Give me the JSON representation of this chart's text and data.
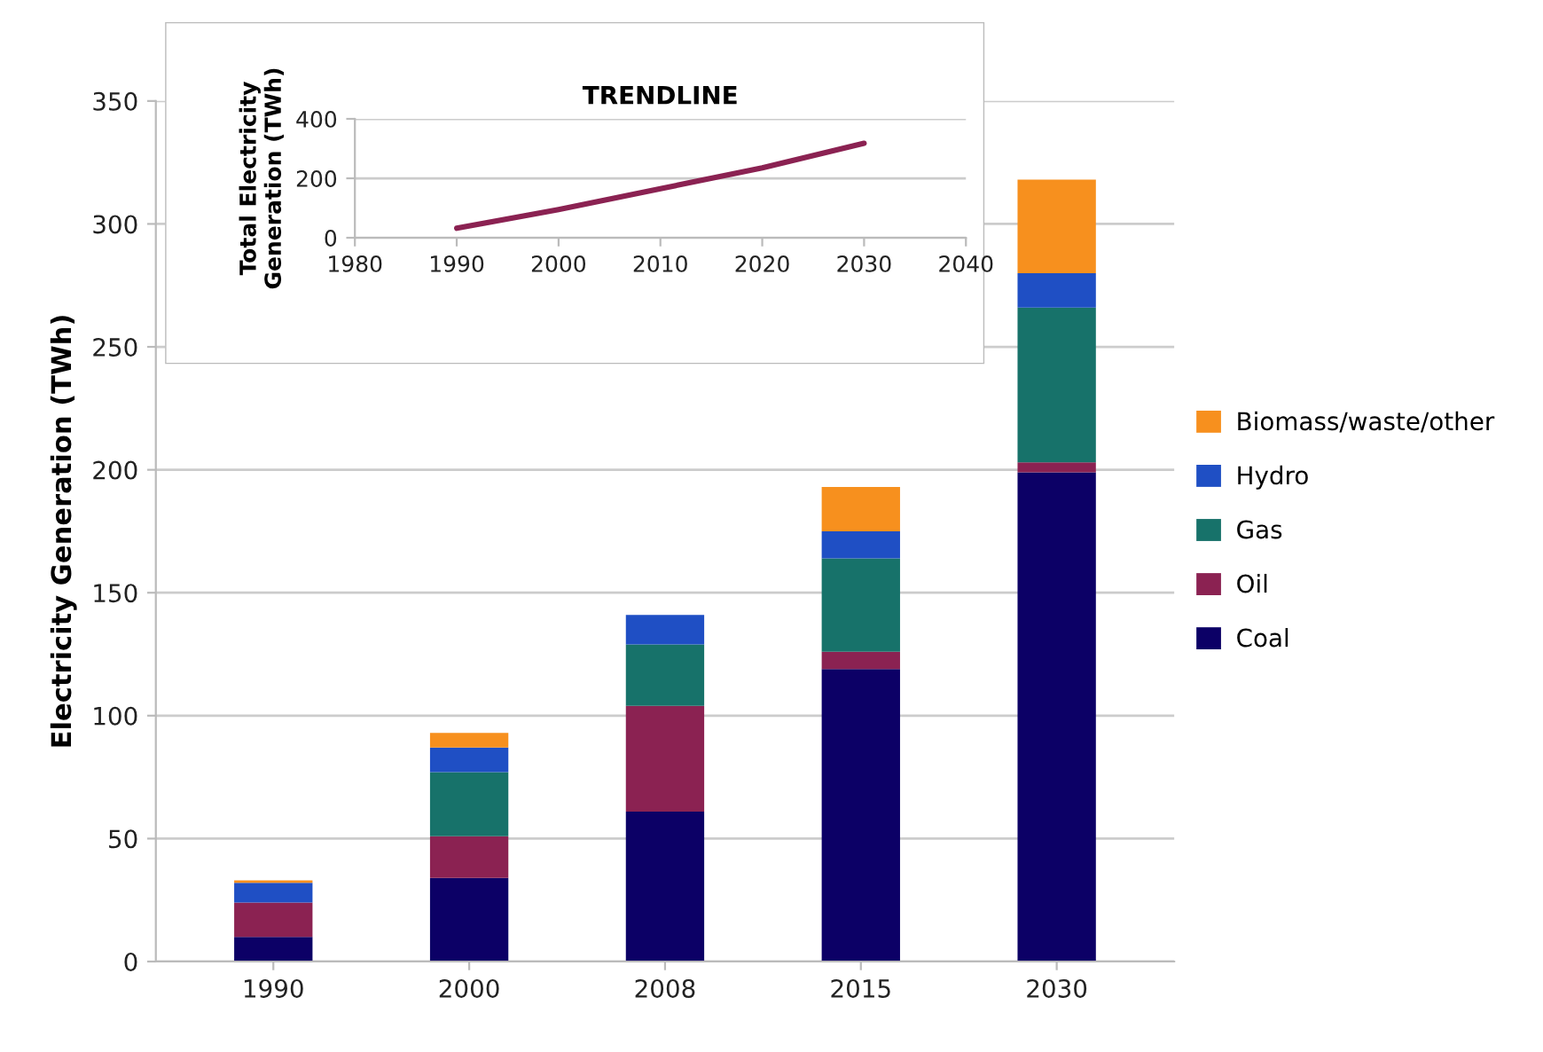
{
  "chart_data": [
    {
      "type": "bar",
      "ylabel": "Electricity Generation (TWh)",
      "categories": [
        "1990",
        "2000",
        "2008",
        "2015",
        "2030"
      ],
      "stacked": true,
      "ylim": [
        0,
        350
      ],
      "yticks": [
        0,
        50,
        100,
        150,
        200,
        250,
        300,
        350
      ],
      "grid": "y",
      "legend": "right",
      "series": [
        {
          "name": "Coal",
          "color": "#0c0066",
          "values": [
            10,
            34,
            61,
            119,
            199
          ]
        },
        {
          "name": "Oil",
          "color": "#8b2252",
          "values": [
            14,
            17,
            43,
            7,
            4
          ]
        },
        {
          "name": "Gas",
          "color": "#17726a",
          "values": [
            0,
            26,
            25,
            38,
            63
          ]
        },
        {
          "name": "Hydro",
          "color": "#1f4fc4",
          "values": [
            8,
            10,
            12,
            11,
            14
          ]
        },
        {
          "name": "Biomass/waste/other",
          "color": "#f7901e",
          "values": [
            1,
            6,
            0,
            18,
            38
          ]
        }
      ]
    },
    {
      "type": "line",
      "title": "TRENDLINE",
      "ylabel": "Total Electricity\nGeneration (TWh)",
      "xlim": [
        1980,
        2040
      ],
      "xticks": [
        1980,
        1990,
        2000,
        2010,
        2020,
        2030,
        2040
      ],
      "ylim": [
        0,
        400
      ],
      "yticks": [
        0,
        200,
        400
      ],
      "grid": "y",
      "series": [
        {
          "color": "#8b2252",
          "x": [
            1990,
            2000,
            2010,
            2020,
            2030
          ],
          "values": [
            32,
            95,
            165,
            235,
            318
          ]
        }
      ]
    }
  ]
}
